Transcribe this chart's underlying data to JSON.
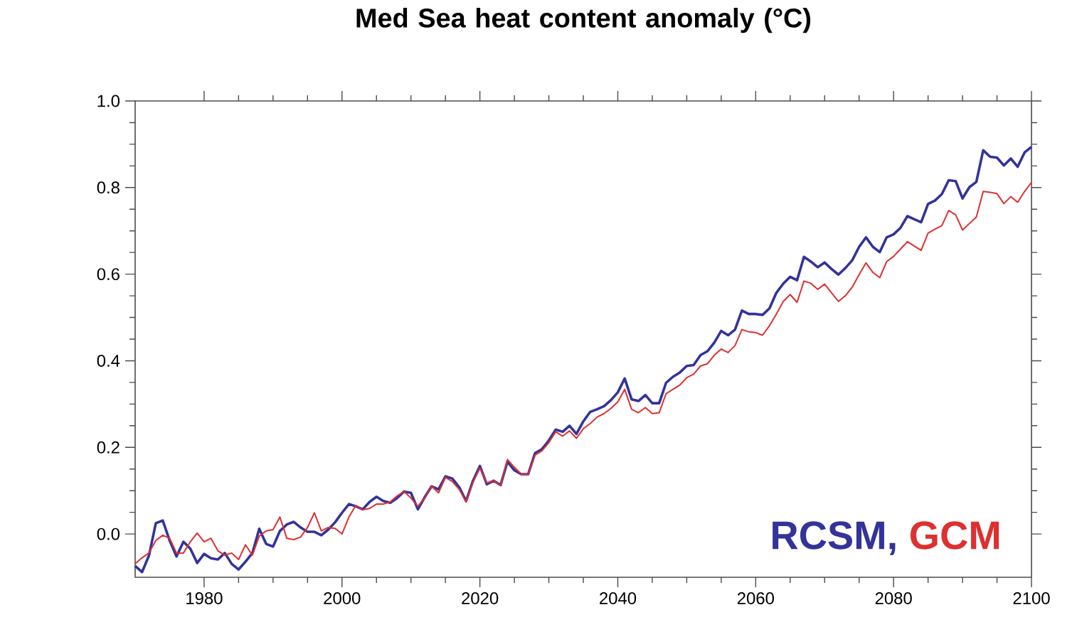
{
  "chart_data": {
    "type": "line",
    "title": "Med Sea heat content anomaly (°C)",
    "x": [
      1970,
      1971,
      1972,
      1973,
      1974,
      1975,
      1976,
      1977,
      1978,
      1979,
      1980,
      1981,
      1982,
      1983,
      1984,
      1985,
      1986,
      1987,
      1988,
      1989,
      1990,
      1991,
      1992,
      1993,
      1994,
      1995,
      1996,
      1997,
      1998,
      1999,
      2000,
      2001,
      2002,
      2003,
      2004,
      2005,
      2006,
      2007,
      2008,
      2009,
      2010,
      2011,
      2012,
      2013,
      2014,
      2015,
      2016,
      2017,
      2018,
      2019,
      2020,
      2021,
      2022,
      2023,
      2024,
      2025,
      2026,
      2027,
      2028,
      2029,
      2030,
      2031,
      2032,
      2033,
      2034,
      2035,
      2036,
      2037,
      2038,
      2039,
      2040,
      2041,
      2042,
      2043,
      2044,
      2045,
      2046,
      2047,
      2048,
      2049,
      2050,
      2051,
      2052,
      2053,
      2054,
      2055,
      2056,
      2057,
      2058,
      2059,
      2060,
      2061,
      2062,
      2063,
      2064,
      2065,
      2066,
      2067,
      2068,
      2069,
      2070,
      2071,
      2072,
      2073,
      2074,
      2075,
      2076,
      2077,
      2078,
      2079,
      2080,
      2081,
      2082,
      2083,
      2084,
      2085,
      2086,
      2087,
      2088,
      2089,
      2090,
      2091,
      2092,
      2093,
      2094,
      2095,
      2096,
      2097,
      2098,
      2099,
      2100
    ],
    "series": [
      {
        "name": "RCSM",
        "color": "#33339a",
        "values": [
          -0.074,
          -0.088,
          -0.05,
          0.025,
          0.031,
          -0.015,
          -0.052,
          -0.018,
          -0.034,
          -0.067,
          -0.046,
          -0.056,
          -0.059,
          -0.044,
          -0.069,
          -0.082,
          -0.064,
          -0.044,
          0.012,
          -0.023,
          -0.029,
          0.007,
          0.022,
          0.028,
          0.015,
          0.005,
          0.005,
          -0.003,
          0.01,
          0.027,
          0.049,
          0.069,
          0.064,
          0.057,
          0.074,
          0.086,
          0.076,
          0.072,
          0.083,
          0.098,
          0.095,
          0.057,
          0.085,
          0.11,
          0.103,
          0.133,
          0.128,
          0.108,
          0.076,
          0.123,
          0.157,
          0.115,
          0.123,
          0.113,
          0.167,
          0.147,
          0.138,
          0.138,
          0.187,
          0.196,
          0.216,
          0.241,
          0.236,
          0.25,
          0.231,
          0.26,
          0.282,
          0.288,
          0.295,
          0.309,
          0.327,
          0.359,
          0.311,
          0.307,
          0.321,
          0.302,
          0.302,
          0.349,
          0.363,
          0.373,
          0.388,
          0.39,
          0.413,
          0.422,
          0.442,
          0.469,
          0.459,
          0.472,
          0.516,
          0.508,
          0.508,
          0.506,
          0.521,
          0.557,
          0.578,
          0.594,
          0.586,
          0.64,
          0.629,
          0.616,
          0.627,
          0.612,
          0.599,
          0.614,
          0.632,
          0.663,
          0.685,
          0.663,
          0.651,
          0.685,
          0.692,
          0.707,
          0.734,
          0.727,
          0.72,
          0.762,
          0.77,
          0.785,
          0.817,
          0.815,
          0.775,
          0.801,
          0.813,
          0.886,
          0.871,
          0.869,
          0.851,
          0.867,
          0.848,
          0.881,
          0.894
        ]
      },
      {
        "name": "GCM",
        "color": "#dd3030",
        "values": [
          -0.069,
          -0.055,
          -0.044,
          -0.015,
          -0.003,
          -0.01,
          -0.044,
          -0.044,
          -0.018,
          0.002,
          -0.018,
          -0.01,
          -0.039,
          -0.049,
          -0.044,
          -0.059,
          -0.025,
          -0.049,
          -0.005,
          0.007,
          0.01,
          0.039,
          -0.01,
          -0.013,
          -0.007,
          0.015,
          0.049,
          0.007,
          0.015,
          0.013,
          0.0,
          0.039,
          0.066,
          0.056,
          0.059,
          0.069,
          0.069,
          0.074,
          0.088,
          0.098,
          0.083,
          0.064,
          0.083,
          0.11,
          0.095,
          0.131,
          0.121,
          0.103,
          0.074,
          0.12,
          0.152,
          0.118,
          0.123,
          0.113,
          0.172,
          0.154,
          0.138,
          0.138,
          0.182,
          0.192,
          0.211,
          0.236,
          0.226,
          0.238,
          0.221,
          0.243,
          0.255,
          0.27,
          0.278,
          0.29,
          0.305,
          0.334,
          0.288,
          0.28,
          0.292,
          0.278,
          0.28,
          0.324,
          0.334,
          0.344,
          0.361,
          0.369,
          0.388,
          0.393,
          0.413,
          0.427,
          0.419,
          0.435,
          0.472,
          0.467,
          0.465,
          0.459,
          0.481,
          0.508,
          0.537,
          0.553,
          0.535,
          0.584,
          0.579,
          0.565,
          0.577,
          0.557,
          0.537,
          0.55,
          0.57,
          0.599,
          0.626,
          0.604,
          0.592,
          0.629,
          0.641,
          0.658,
          0.675,
          0.665,
          0.655,
          0.695,
          0.704,
          0.712,
          0.747,
          0.737,
          0.702,
          0.717,
          0.732,
          0.791,
          0.789,
          0.786,
          0.763,
          0.779,
          0.766,
          0.791,
          0.812
        ]
      }
    ],
    "xlim": [
      1970,
      2100
    ],
    "xticks": [
      1980,
      2000,
      2020,
      2040,
      2060,
      2080,
      2100
    ],
    "ylim": [
      -0.1,
      1.0
    ],
    "yticks": [
      {
        "value": 0,
        "label": "0.0"
      },
      {
        "value": 0.2,
        "label": "0.2"
      },
      {
        "value": 0.4,
        "label": "0.4"
      },
      {
        "value": 0.6,
        "label": "0.6"
      },
      {
        "value": 0.8,
        "label": "0.8"
      },
      {
        "value": 1.0,
        "label": "1.0"
      }
    ],
    "annotations": [
      ","
    ],
    "legend": "bottom right",
    "marker": "none",
    "line_style": "solid"
  }
}
